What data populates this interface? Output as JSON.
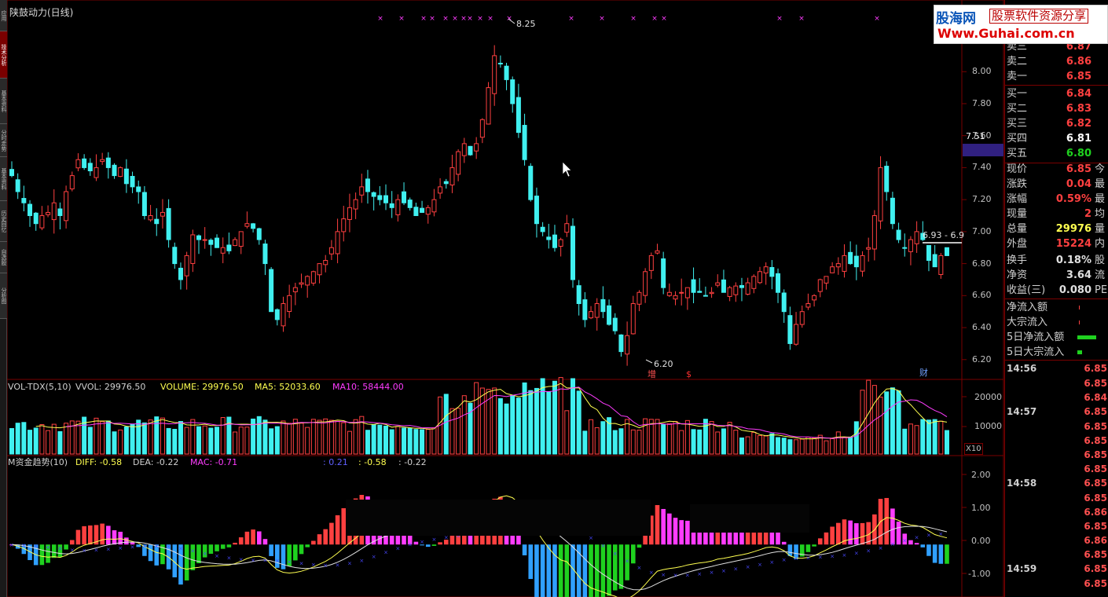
{
  "window": {
    "title": "陕鼓动力(日线)"
  },
  "side_tabs": [
    {
      "label": "应用"
    },
    {
      "label": "技术分析",
      "active": true
    },
    {
      "label": "基本资料"
    },
    {
      "label": "分时走势"
    },
    {
      "label": "基本资料"
    },
    {
      "label": "历史回忆"
    },
    {
      "label": "自选股"
    },
    {
      "label": "分析图"
    }
  ],
  "colors": {
    "up": "#ff4040",
    "down": "#40f0f0",
    "magenta": "#ff3cff",
    "yellow": "#ffff50",
    "blue": "#5050ff",
    "green": "#1fd11f",
    "frame": "#7a0000"
  },
  "logo": {
    "site_cn": "股海网",
    "slogan": "股票软件资源分享",
    "url": "Www.Guhai.com.cn"
  },
  "price_axis": {
    "ticks": [
      "8.00",
      "7.80",
      "7.60",
      "7.40",
      "7.20",
      "7.00",
      "6.80",
      "6.60",
      "6.40",
      "6.20"
    ],
    "highlight": "7.51"
  },
  "price_annotations": {
    "high": "8.25",
    "low": "6.20",
    "range": "6.93 - 6.9"
  },
  "event_markers": [
    {
      "text": "增"
    },
    {
      "text": "$"
    },
    {
      "text": "财"
    }
  ],
  "volume_panel": {
    "name": "VOL-TDX(5,10)",
    "vvol": "VVOL: 29976.50",
    "volume": "VOLUME: 29976.50",
    "ma5": "MA5: 52033.60",
    "ma10": "MA10: 58444.00",
    "axis": [
      "20000",
      "10000"
    ],
    "unit": "X10"
  },
  "macd_panel": {
    "name": "M资金趋势(10)",
    "diff": "DIFF: -0.58",
    "dea": "DEA: -0.22",
    "mac": "MAC: -0.71",
    "v1": ": 0.21",
    "v2": ": -0.58",
    "v3": ": -0.22",
    "axis": [
      "2.00",
      "1.00",
      "0.00",
      "-1.00"
    ]
  },
  "quote": {
    "orderbook": [
      {
        "label": "卖三",
        "value": "6.87",
        "color": "#ff4040"
      },
      {
        "label": "卖二",
        "value": "6.86",
        "color": "#ff4040"
      },
      {
        "label": "卖一",
        "value": "6.85",
        "color": "#ff4040"
      },
      {
        "label": "买一",
        "value": "6.84",
        "color": "#ff4040"
      },
      {
        "label": "买二",
        "value": "6.83",
        "color": "#ff4040"
      },
      {
        "label": "买三",
        "value": "6.82",
        "color": "#ff4040"
      },
      {
        "label": "买四",
        "value": "6.81",
        "color": "#ffffff"
      },
      {
        "label": "买五",
        "value": "6.80",
        "color": "#1fd11f"
      }
    ],
    "stats": [
      {
        "label": "现价",
        "value": "6.85",
        "color": "#ff4040",
        "extra": "今"
      },
      {
        "label": "涨跌",
        "value": "0.04",
        "color": "#ff4040",
        "extra": "最"
      },
      {
        "label": "涨幅",
        "value": "0.59%",
        "color": "#ff4040",
        "extra": "最"
      },
      {
        "label": "现量",
        "value": "2",
        "color": "#ff4040",
        "extra": "均"
      },
      {
        "label": "总量",
        "value": "29976",
        "color": "#ffff50",
        "extra": "量"
      },
      {
        "label": "外盘",
        "value": "15224",
        "color": "#ff4040",
        "extra": "内"
      },
      {
        "label": "换手",
        "value": "0.18%",
        "color": "#e0e0e0",
        "extra": "股"
      },
      {
        "label": "净资",
        "value": "3.64",
        "color": "#e0e0e0",
        "extra": "流"
      },
      {
        "label": "收益(三)",
        "value": "0.080",
        "color": "#e0e0e0",
        "extra": "PE"
      }
    ],
    "flows": [
      {
        "label": "净流入额",
        "level": 0.0
      },
      {
        "label": "大宗流入",
        "level": 0.0
      },
      {
        "label": "5日净流入额",
        "level": 0.85
      },
      {
        "label": "5日大宗流入",
        "level": 0.2
      }
    ],
    "ticks": [
      {
        "time": "14:56",
        "price": "6.85"
      },
      {
        "time": "",
        "price": "6.85"
      },
      {
        "time": "",
        "price": "6.84"
      },
      {
        "time": "14:57",
        "price": "6.85"
      },
      {
        "time": "",
        "price": "6.85"
      },
      {
        "time": "",
        "price": "6.85"
      },
      {
        "time": "",
        "price": "6.85"
      },
      {
        "time": "",
        "price": "6.85"
      },
      {
        "time": "14:58",
        "price": "6.85"
      },
      {
        "time": "",
        "price": "6.85"
      },
      {
        "time": "",
        "price": "6.86"
      },
      {
        "time": "",
        "price": "6.85"
      },
      {
        "time": "",
        "price": "6.86"
      },
      {
        "time": "",
        "price": "6.85"
      },
      {
        "time": "14:59",
        "price": "6.85"
      },
      {
        "time": "",
        "price": "6.85"
      },
      {
        "time": "",
        "price": "6.85"
      },
      {
        "time": "",
        "price": "6.85"
      },
      {
        "time": "",
        "price": "6.85"
      }
    ]
  },
  "chart_data": {
    "type": "candlestick",
    "price_range": [
      6.14,
      8.34
    ],
    "closes": [
      7.35,
      7.25,
      7.18,
      7.1,
      7.05,
      7.1,
      7.12,
      7.18,
      7.1,
      7.25,
      7.35,
      7.45,
      7.4,
      7.38,
      7.4,
      7.45,
      7.4,
      7.35,
      7.4,
      7.3,
      7.28,
      7.25,
      7.1,
      7.1,
      7.05,
      7.12,
      6.95,
      6.8,
      6.7,
      6.85,
      6.98,
      6.95,
      6.95,
      6.92,
      6.9,
      6.9,
      6.88,
      6.95,
      7.0,
      7.05,
      7.02,
      6.95,
      6.8,
      6.5,
      6.45,
      6.55,
      6.6,
      6.65,
      6.68,
      6.72,
      6.75,
      6.8,
      6.82,
      6.9,
      7.0,
      7.08,
      7.15,
      7.2,
      7.28,
      7.25,
      7.22,
      7.2,
      7.18,
      7.15,
      7.2,
      7.18,
      7.15,
      7.1,
      7.12,
      7.15,
      7.2,
      7.28,
      7.3,
      7.4,
      7.5,
      7.55,
      7.48,
      7.55,
      7.7,
      7.9,
      8.1,
      8.05,
      7.95,
      7.8,
      7.62,
      7.45,
      7.2,
      7.05,
      7.0,
      6.95,
      6.9,
      6.95,
      7.05,
      6.7,
      6.55,
      6.45,
      6.5,
      6.55,
      6.5,
      6.42,
      6.38,
      6.25,
      6.35,
      6.55,
      6.62,
      6.75,
      6.85,
      6.88,
      6.65,
      6.62,
      6.6,
      6.62,
      6.65,
      6.62,
      6.62,
      6.6,
      6.62,
      6.68,
      6.62,
      6.65,
      6.66,
      6.65,
      6.68,
      6.72,
      6.75,
      6.78,
      6.72,
      6.62,
      6.5,
      6.3,
      6.42,
      6.5,
      6.55,
      6.6,
      6.7,
      6.72,
      6.78,
      6.8,
      6.85,
      6.8,
      6.78,
      6.85,
      6.9,
      7.1,
      7.4,
      7.25,
      7.05,
      6.95,
      6.9,
      6.95,
      7.0,
      6.95,
      6.82,
      6.78,
      6.85,
      6.85
    ],
    "volume_max": 22000,
    "macd_range": [
      -1.5,
      2.25
    ]
  }
}
